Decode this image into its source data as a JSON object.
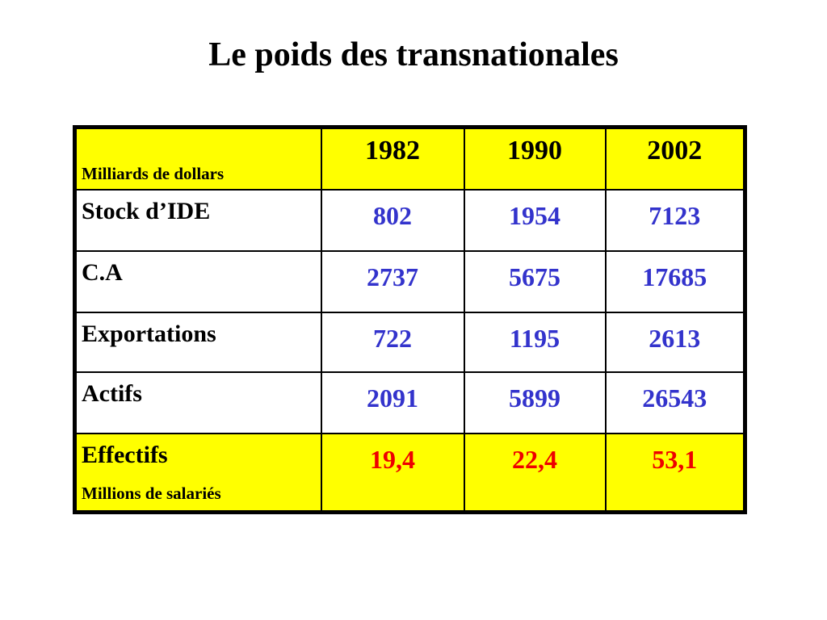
{
  "slide": {
    "title": "Le poids des transnationales"
  },
  "table": {
    "corner_label": "Milliards de dollars",
    "years": [
      "1982",
      "1990",
      "2002"
    ],
    "rows": [
      {
        "label": "Stock d’IDE",
        "values": [
          "802",
          "1954",
          "7123"
        ]
      },
      {
        "label": "C.A",
        "values": [
          "2737",
          "5675",
          "17685"
        ]
      },
      {
        "label": "Exportations",
        "values": [
          "722",
          "1195",
          "2613"
        ]
      },
      {
        "label": "Actifs",
        "values": [
          "2091",
          "5899",
          "26543"
        ]
      },
      {
        "label": "Effectifs",
        "sublabel": "Millions de salariés",
        "values": [
          "19,4",
          "22,4",
          "53,1"
        ]
      }
    ]
  },
  "colors": {
    "highlight_bg": "#FFFF00",
    "value_blue": "#3333CC",
    "value_red": "#EE0000",
    "text_black": "#000000"
  },
  "chart_data": {
    "type": "table",
    "title": "Le poids des transnationales",
    "unit_note": "Milliards de dollars; ligne Effectifs en millions de salariés",
    "columns": [
      "",
      "1982",
      "1990",
      "2002"
    ],
    "rows": [
      [
        "Stock d’IDE",
        802,
        1954,
        7123
      ],
      [
        "C.A",
        2737,
        5675,
        17685
      ],
      [
        "Exportations",
        722,
        1195,
        2613
      ],
      [
        "Actifs",
        2091,
        5899,
        26543
      ],
      [
        "Effectifs (millions de salariés)",
        19.4,
        22.4,
        53.1
      ]
    ]
  }
}
